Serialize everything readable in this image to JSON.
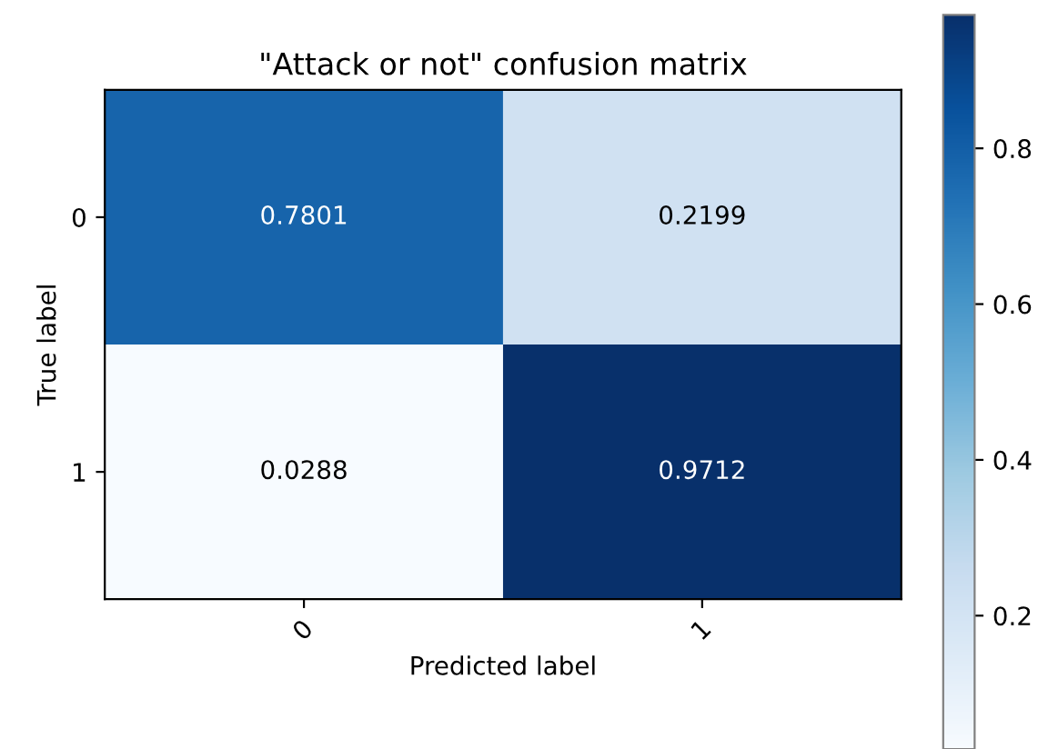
{
  "chart_data": {
    "type": "heatmap",
    "title": "\"Attack or not\" confusion matrix",
    "xlabel": "Predicted label",
    "ylabel": "True label",
    "categories": [
      "0",
      "1"
    ],
    "y_categories": [
      "0",
      "1"
    ],
    "cells": [
      [
        0.7801,
        0.2199
      ],
      [
        0.0288,
        0.9712
      ]
    ],
    "data_labels": true,
    "clim": [
      0.0288,
      0.9712
    ],
    "cticks": [
      0.2,
      0.4,
      0.6,
      0.8
    ]
  }
}
